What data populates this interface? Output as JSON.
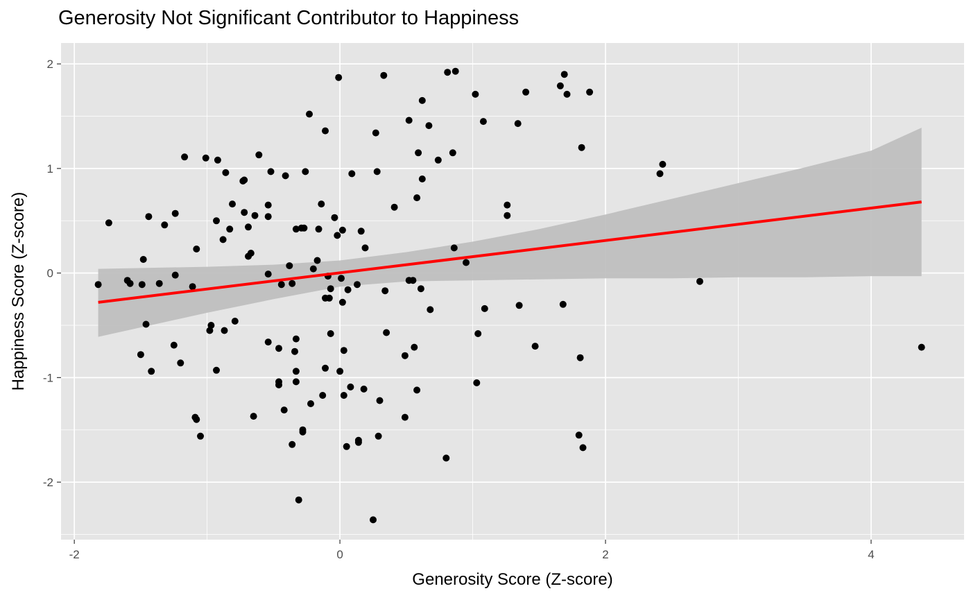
{
  "chart_data": {
    "type": "scatter",
    "title": "Generosity Not Significant Contributor to Happiness",
    "xlabel": "Generosity Score (Z-score)",
    "ylabel": "Happiness Score (Z-score)",
    "xlim": [
      -2.1,
      4.7
    ],
    "ylim": [
      -2.55,
      2.2
    ],
    "x_ticks": [
      -2,
      0,
      2,
      4
    ],
    "y_ticks": [
      -2,
      -1,
      0,
      1,
      2
    ],
    "x_tick_labels": [
      "-2",
      "0",
      "2",
      "4"
    ],
    "y_tick_labels": [
      "-2",
      "-1",
      "0",
      "1",
      "2"
    ],
    "grid": true,
    "background": "#e5e5e5",
    "gridline_color": "#ffffff",
    "point_color": "#000000",
    "trend_color": "#ff0000",
    "band_color": "#bdbdbd",
    "trend_line": {
      "x": [
        -1.82,
        4.38
      ],
      "y": [
        -0.28,
        0.68
      ]
    },
    "confidence_band": {
      "x": [
        -1.82,
        -1.0,
        -0.5,
        0.0,
        0.5,
        1.0,
        1.5,
        2.0,
        2.5,
        3.0,
        3.5,
        4.0,
        4.38
      ],
      "upper": [
        0.04,
        0.06,
        0.08,
        0.12,
        0.2,
        0.3,
        0.42,
        0.56,
        0.71,
        0.86,
        1.01,
        1.17,
        1.39
      ],
      "lower": [
        -0.61,
        -0.38,
        -0.25,
        -0.13,
        -0.08,
        -0.07,
        -0.06,
        -0.05,
        -0.05,
        -0.04,
        -0.04,
        -0.03,
        -0.03
      ]
    },
    "points": [
      [
        -1.82,
        -0.11
      ],
      [
        -1.74,
        0.48
      ],
      [
        -1.6,
        -0.07
      ],
      [
        -1.58,
        -0.1
      ],
      [
        -1.5,
        -0.78
      ],
      [
        -1.49,
        -0.11
      ],
      [
        -1.48,
        0.13
      ],
      [
        -1.46,
        -0.49
      ],
      [
        -1.44,
        0.54
      ],
      [
        -1.42,
        -0.94
      ],
      [
        -1.36,
        -0.1
      ],
      [
        -1.32,
        0.46
      ],
      [
        -1.25,
        -0.69
      ],
      [
        -1.24,
        0.57
      ],
      [
        -1.24,
        -0.02
      ],
      [
        -1.2,
        -0.86
      ],
      [
        -1.17,
        1.11
      ],
      [
        -1.11,
        -0.13
      ],
      [
        -1.08,
        0.23
      ],
      [
        -1.09,
        -1.38
      ],
      [
        -1.08,
        -1.4
      ],
      [
        -1.05,
        -1.56
      ],
      [
        -1.01,
        1.1
      ],
      [
        -0.98,
        -0.55
      ],
      [
        -0.97,
        -0.5
      ],
      [
        -0.93,
        0.5
      ],
      [
        -0.93,
        -0.93
      ],
      [
        -0.92,
        1.08
      ],
      [
        -0.88,
        0.32
      ],
      [
        -0.87,
        -0.55
      ],
      [
        -0.86,
        0.96
      ],
      [
        -0.83,
        0.42
      ],
      [
        -0.81,
        0.66
      ],
      [
        -0.79,
        -0.46
      ],
      [
        -0.73,
        0.88
      ],
      [
        -0.72,
        0.89
      ],
      [
        -0.72,
        0.58
      ],
      [
        -0.69,
        0.16
      ],
      [
        -0.69,
        0.44
      ],
      [
        -0.67,
        0.19
      ],
      [
        -0.65,
        -1.37
      ],
      [
        -0.64,
        0.55
      ],
      [
        -0.61,
        1.13
      ],
      [
        -0.54,
        -0.01
      ],
      [
        -0.54,
        -0.66
      ],
      [
        -0.54,
        0.65
      ],
      [
        -0.54,
        0.54
      ],
      [
        -0.52,
        0.97
      ],
      [
        -0.46,
        -1.07
      ],
      [
        -0.46,
        -1.04
      ],
      [
        -0.46,
        -0.72
      ],
      [
        -0.44,
        -0.11
      ],
      [
        -0.42,
        -1.31
      ],
      [
        -0.41,
        0.93
      ],
      [
        -0.38,
        0.07
      ],
      [
        -0.36,
        -0.1
      ],
      [
        -0.36,
        -1.64
      ],
      [
        -0.34,
        -0.75
      ],
      [
        -0.33,
        -1.04
      ],
      [
        -0.33,
        -0.63
      ],
      [
        -0.33,
        -0.94
      ],
      [
        -0.33,
        0.42
      ],
      [
        -0.31,
        -2.17
      ],
      [
        -0.29,
        0.43
      ],
      [
        -0.28,
        -1.5
      ],
      [
        -0.28,
        -1.52
      ],
      [
        -0.27,
        0.43
      ],
      [
        -0.26,
        0.97
      ],
      [
        -0.23,
        1.52
      ],
      [
        -0.22,
        -1.25
      ],
      [
        -0.2,
        0.04
      ],
      [
        -0.17,
        0.12
      ],
      [
        -0.16,
        0.42
      ],
      [
        -0.14,
        0.66
      ],
      [
        -0.13,
        -1.17
      ],
      [
        -0.11,
        -0.24
      ],
      [
        -0.11,
        -0.91
      ],
      [
        -0.11,
        1.36
      ],
      [
        -0.09,
        -0.03
      ],
      [
        -0.08,
        -0.24
      ],
      [
        -0.07,
        -0.58
      ],
      [
        -0.07,
        -0.15
      ],
      [
        -0.04,
        0.53
      ],
      [
        -0.02,
        0.36
      ],
      [
        -0.01,
        1.87
      ],
      [
        0.0,
        -0.94
      ],
      [
        0.01,
        -0.05
      ],
      [
        0.02,
        -0.28
      ],
      [
        0.02,
        0.41
      ],
      [
        0.03,
        -0.74
      ],
      [
        0.03,
        -1.17
      ],
      [
        0.05,
        -1.66
      ],
      [
        0.06,
        -0.16
      ],
      [
        0.08,
        -1.09
      ],
      [
        0.09,
        0.95
      ],
      [
        0.13,
        -0.11
      ],
      [
        0.14,
        -1.62
      ],
      [
        0.14,
        -1.6
      ],
      [
        0.16,
        0.4
      ],
      [
        0.18,
        -1.11
      ],
      [
        0.19,
        0.24
      ],
      [
        0.25,
        -2.36
      ],
      [
        0.27,
        1.34
      ],
      [
        0.28,
        0.97
      ],
      [
        0.29,
        -1.56
      ],
      [
        0.3,
        -1.22
      ],
      [
        0.33,
        1.89
      ],
      [
        0.34,
        -0.17
      ],
      [
        0.35,
        -0.57
      ],
      [
        0.41,
        0.63
      ],
      [
        0.49,
        -1.38
      ],
      [
        0.49,
        -0.79
      ],
      [
        0.52,
        -0.07
      ],
      [
        0.52,
        1.46
      ],
      [
        0.55,
        -0.07
      ],
      [
        0.56,
        -0.71
      ],
      [
        0.58,
        0.72
      ],
      [
        0.58,
        -1.12
      ],
      [
        0.59,
        1.15
      ],
      [
        0.61,
        -0.15
      ],
      [
        0.62,
        1.65
      ],
      [
        0.62,
        0.9
      ],
      [
        0.67,
        1.41
      ],
      [
        0.68,
        -0.35
      ],
      [
        0.74,
        1.08
      ],
      [
        0.8,
        -1.77
      ],
      [
        0.81,
        1.92
      ],
      [
        0.85,
        1.15
      ],
      [
        0.86,
        0.24
      ],
      [
        0.87,
        1.93
      ],
      [
        0.95,
        0.1
      ],
      [
        1.02,
        1.71
      ],
      [
        1.03,
        -1.05
      ],
      [
        1.04,
        -0.58
      ],
      [
        1.08,
        1.45
      ],
      [
        1.09,
        -0.34
      ],
      [
        1.26,
        0.65
      ],
      [
        1.26,
        0.55
      ],
      [
        1.34,
        1.43
      ],
      [
        1.35,
        -0.31
      ],
      [
        1.4,
        1.73
      ],
      [
        1.47,
        -0.7
      ],
      [
        1.66,
        1.79
      ],
      [
        1.68,
        -0.3
      ],
      [
        1.69,
        1.9
      ],
      [
        1.71,
        1.71
      ],
      [
        1.8,
        -1.55
      ],
      [
        1.81,
        -0.81
      ],
      [
        1.82,
        1.2
      ],
      [
        1.83,
        -1.67
      ],
      [
        1.88,
        1.73
      ],
      [
        2.41,
        0.95
      ],
      [
        2.43,
        1.04
      ],
      [
        2.71,
        -0.08
      ],
      [
        4.38,
        -0.71
      ]
    ]
  }
}
